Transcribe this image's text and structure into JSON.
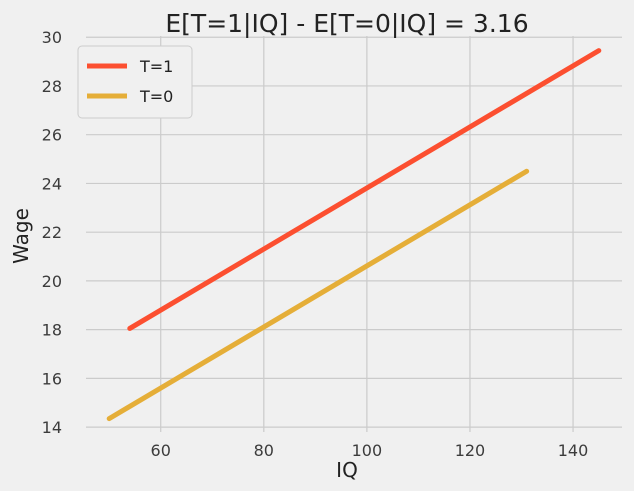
{
  "chart_data": {
    "type": "line",
    "title": "E[T=1|IQ] - E[T=0|IQ] = 3.16",
    "xlabel": "IQ",
    "ylabel": "Wage",
    "xlim": [
      45.5,
      149.5
    ],
    "ylim": [
      13.8,
      30.05
    ],
    "xticks": [
      60,
      80,
      100,
      120,
      140
    ],
    "yticks": [
      14,
      16,
      18,
      20,
      22,
      24,
      26,
      28,
      30
    ],
    "grid": true,
    "legend_position": "top-left",
    "series": [
      {
        "name": "T=1",
        "color": "#fc4f30",
        "x": [
          54,
          145
        ],
        "values": [
          18.05,
          29.45
        ]
      },
      {
        "name": "T=0",
        "color": "#e5ae38",
        "x": [
          50,
          131
        ],
        "values": [
          14.35,
          24.5
        ]
      }
    ]
  }
}
